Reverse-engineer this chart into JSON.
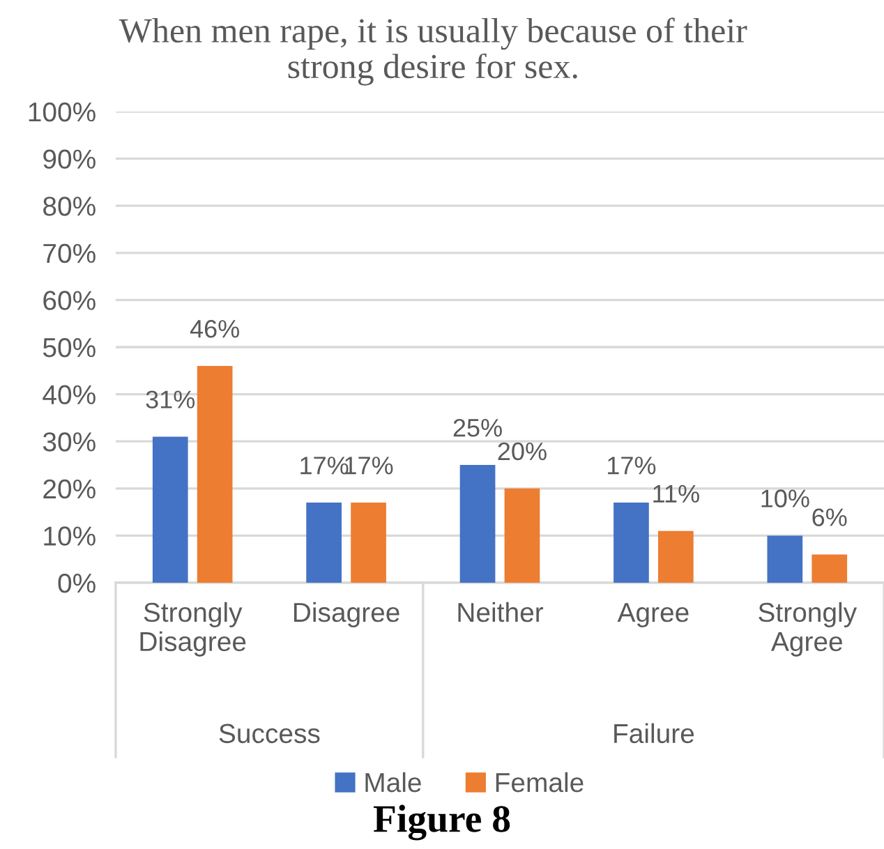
{
  "chart_data": {
    "type": "bar",
    "title": "When men rape, it is usually because of their\nstrong desire for sex.",
    "categories": [
      "Strongly Disagree",
      "Disagree",
      "Neither",
      "Agree",
      "Strongly Agree"
    ],
    "series": [
      {
        "name": "Male",
        "color": "#4472c4",
        "values": [
          31,
          17,
          25,
          17,
          10
        ],
        "value_labels": [
          "31%",
          "17%",
          "25%",
          "17%",
          "10%"
        ]
      },
      {
        "name": "Female",
        "color": "#ed7d31",
        "values": [
          46,
          17,
          20,
          11,
          6
        ],
        "value_labels": [
          "46%",
          "17%",
          "20%",
          "11%",
          "6%"
        ]
      }
    ],
    "ylim": [
      0,
      100
    ],
    "yticks": [
      {
        "value": 0,
        "label": "0%"
      },
      {
        "value": 10,
        "label": "10%"
      },
      {
        "value": 20,
        "label": "20%"
      },
      {
        "value": 30,
        "label": "30%"
      },
      {
        "value": 40,
        "label": "40%"
      },
      {
        "value": 50,
        "label": "50%"
      },
      {
        "value": 60,
        "label": "60%"
      },
      {
        "value": 70,
        "label": "70%"
      },
      {
        "value": 80,
        "label": "80%"
      },
      {
        "value": 90,
        "label": "90%"
      },
      {
        "value": 100,
        "label": "100%"
      }
    ],
    "grid": "y",
    "legend": "bottom",
    "annotations": [
      "Success",
      "Failure",
      "Figure 8"
    ]
  }
}
